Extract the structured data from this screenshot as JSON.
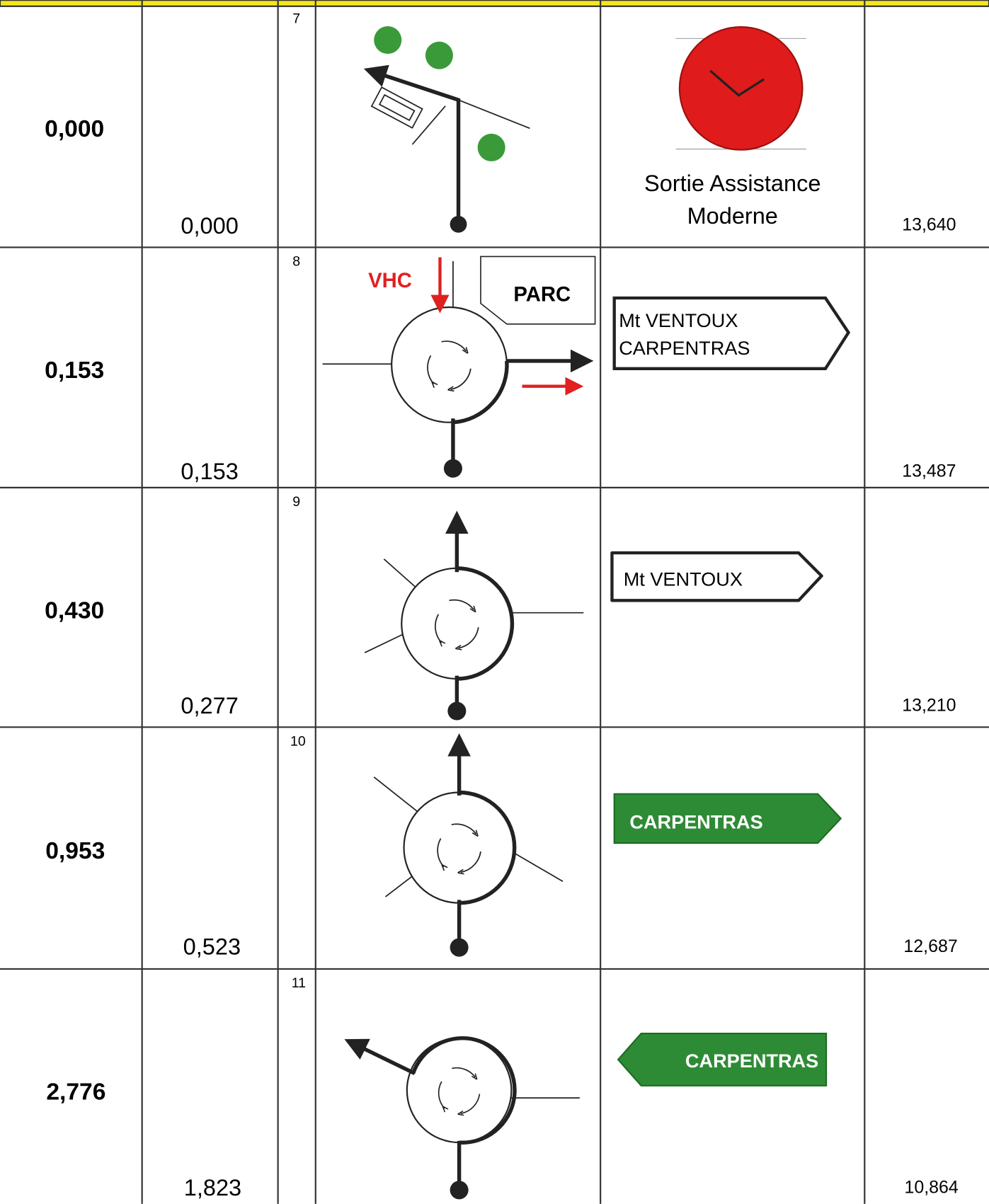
{
  "rows": [
    {
      "total": "0,000",
      "partial": "0,000",
      "index": "7",
      "sign": {
        "lines": [
          "Sortie Assistance",
          "Moderne"
        ]
      },
      "remaining": "13,640"
    },
    {
      "total": "0,153",
      "partial": "0,153",
      "index": "8",
      "diagram_labels": [
        "VHC",
        "PARC"
      ],
      "sign": {
        "lines": [
          "Mt VENTOUX",
          "CARPENTRAS"
        ]
      },
      "remaining": "13,487"
    },
    {
      "total": "0,430",
      "partial": "0,277",
      "index": "9",
      "sign": {
        "lines": [
          "Mt VENTOUX"
        ]
      },
      "remaining": "13,210"
    },
    {
      "total": "0,953",
      "partial": "0,523",
      "index": "10",
      "sign": {
        "lines": [
          "CARPENTRAS"
        ]
      },
      "remaining": "12,687"
    },
    {
      "total": "2,776",
      "partial": "1,823",
      "index": "11",
      "sign": {
        "lines": [
          "CARPENTRAS"
        ]
      },
      "remaining": "10,864"
    }
  ]
}
